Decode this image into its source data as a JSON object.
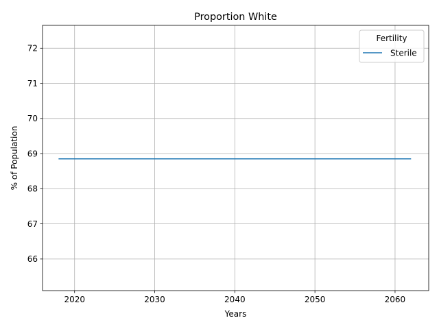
{
  "chart_data": {
    "type": "line",
    "title": "Proportion White",
    "xlabel": "Years",
    "ylabel": "% of Population",
    "xlim": [
      2016,
      2064.2
    ],
    "ylim": [
      65.1,
      72.65
    ],
    "xticks": [
      2020,
      2030,
      2040,
      2050,
      2060
    ],
    "yticks": [
      66,
      67,
      68,
      69,
      70,
      71,
      72
    ],
    "grid": true,
    "legend": {
      "title": "Fertility",
      "placement": "top-right"
    },
    "series": [
      {
        "name": "Sterile",
        "color": "#1f77b4",
        "x": [
          2018,
          2062
        ],
        "y": [
          68.85,
          68.85
        ]
      }
    ]
  }
}
